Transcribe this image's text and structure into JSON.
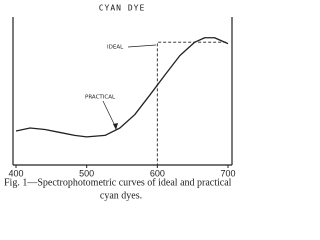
{
  "chart_data": {
    "type": "line",
    "title": "CYAN DYE",
    "xlim": [
      400,
      700
    ],
    "xticks": [
      400,
      500,
      600,
      700
    ],
    "ylim": [
      0,
      100
    ],
    "series": [
      {
        "name": "PRACTICAL",
        "color": "#222",
        "dash": false,
        "x": [
          400,
          420,
          441,
          462,
          483,
          500,
          526,
          547,
          568,
          589,
          611,
          632,
          653,
          667,
          681,
          700
        ],
        "values": [
          23,
          25,
          24,
          22,
          20,
          19,
          20,
          25,
          34,
          47,
          61,
          74,
          83,
          86,
          86,
          82
        ]
      },
      {
        "name": "IDEAL",
        "color": "#222",
        "dash": true,
        "x": [
          400,
          600,
          600,
          700
        ],
        "values": [
          0,
          0,
          83,
          83
        ]
      }
    ],
    "caption": [
      "Fig. 1—Spectrophotometric curves of ideal and practical",
      "cyan dyes."
    ]
  }
}
